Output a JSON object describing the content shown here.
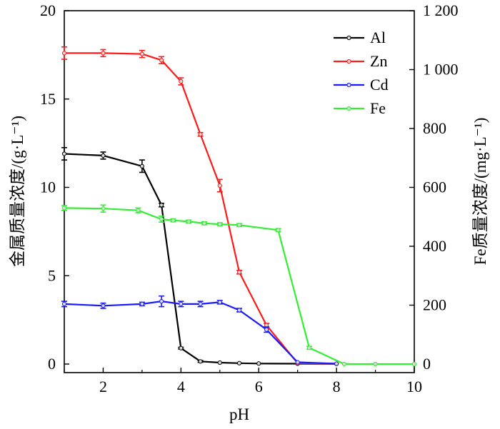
{
  "chart_data": {
    "type": "line",
    "xlabel": "pH",
    "ylabel_left": "金属质量浓度/(g·L⁻¹)",
    "ylabel_right": "Fe质量浓度/(mg·L⁻¹)",
    "xlim": [
      1,
      10
    ],
    "ylim_left": [
      0,
      20
    ],
    "ylim_right": [
      0,
      1200
    ],
    "x_ticks": [
      2,
      4,
      6,
      8,
      10
    ],
    "x_tick_labels": [
      "2",
      "4",
      "6",
      "8",
      "10"
    ],
    "y_ticks_left": [
      0,
      5,
      10,
      15,
      20
    ],
    "y_tick_labels_left": [
      "0",
      "5",
      "10",
      "15",
      "20"
    ],
    "y_ticks_right": [
      0,
      200,
      400,
      600,
      800,
      1000,
      1200
    ],
    "y_tick_labels_right": [
      "0",
      "200",
      "400",
      "600",
      "800",
      "1 000",
      "1 200"
    ],
    "grid": false,
    "legend_position": "top-right",
    "series": [
      {
        "name": "Al",
        "color": "#000000",
        "axis": "left",
        "x": [
          1,
          2,
          3,
          3.5,
          4,
          4.5,
          5,
          5.5,
          6,
          7,
          8
        ],
        "y": [
          11.9,
          11.8,
          11.2,
          9.0,
          0.9,
          0.15,
          0.08,
          0.05,
          0.03,
          0.02,
          0.01
        ],
        "err": [
          0.35,
          0.2,
          0.35,
          0.1,
          0.05,
          0.05,
          0,
          0,
          0,
          0,
          0
        ]
      },
      {
        "name": "Zn",
        "color": "#ff1a1a",
        "axis": "left",
        "x": [
          1,
          2,
          3,
          3.5,
          4,
          4.5,
          5,
          5.5,
          6.2,
          7,
          8
        ],
        "y": [
          17.6,
          17.6,
          17.55,
          17.2,
          16.0,
          13.0,
          10.1,
          5.2,
          2.2,
          0.05,
          0.02
        ],
        "err": [
          0.35,
          0.2,
          0.2,
          0.2,
          0.2,
          0.1,
          0.35,
          0.1,
          0.1,
          0,
          0
        ]
      },
      {
        "name": "Cd",
        "color": "#1a1aff",
        "axis": "left",
        "x": [
          1,
          2,
          3,
          3.5,
          4,
          4.5,
          5,
          5.5,
          6.2,
          7,
          8
        ],
        "y": [
          3.4,
          3.3,
          3.4,
          3.55,
          3.4,
          3.4,
          3.5,
          3.05,
          1.95,
          0.1,
          0.02
        ],
        "err": [
          0.15,
          0.15,
          0.1,
          0.3,
          0.15,
          0.15,
          0.1,
          0.1,
          0.15,
          0,
          0
        ]
      },
      {
        "name": "Fe",
        "color": "#33ee33",
        "axis": "right",
        "x": [
          1,
          2,
          2.9,
          3.5,
          3.8,
          4.2,
          4.6,
          5,
          5.5,
          6.5,
          7.3,
          8.2,
          9,
          10
        ],
        "y": [
          530,
          528,
          522,
          492,
          488,
          484,
          478,
          475,
          472,
          455,
          55,
          0,
          0,
          0
        ],
        "err": [
          8,
          12,
          8,
          10,
          5,
          5,
          5,
          5,
          5,
          5,
          5,
          0,
          0,
          0
        ]
      }
    ]
  }
}
